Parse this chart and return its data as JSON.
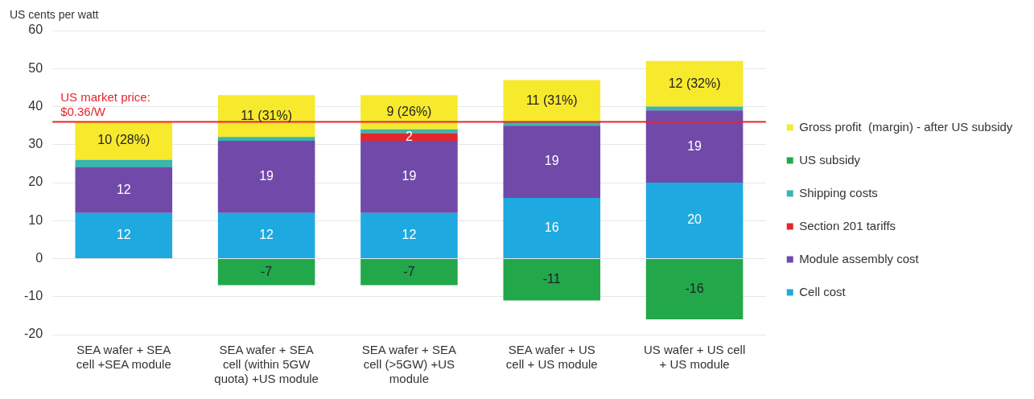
{
  "chart_data": {
    "type": "bar",
    "stacked": true,
    "ylabel": "US cents per watt",
    "categories": [
      "SEA wafer + SEA cell +SEA module",
      "SEA wafer + SEA cell (within 5GW quota) +US module",
      "SEA wafer + SEA cell (>5GW) +US module",
      "SEA wafer + US cell + US module",
      "US wafer + US cell + US module"
    ],
    "series": [
      {
        "name": "Cell cost",
        "color": "#1ea9e1",
        "values": [
          12,
          12,
          12,
          16,
          20
        ],
        "value_labels": [
          "12",
          "12",
          "12",
          "16",
          "20"
        ]
      },
      {
        "name": "Module assembly cost",
        "color": "#7149a9",
        "values": [
          12,
          19,
          19,
          19,
          19
        ],
        "value_labels": [
          "12",
          "19",
          "19",
          "19",
          "19"
        ]
      },
      {
        "name": "Section 201 tariffs",
        "color": "#e3262b",
        "values": [
          null,
          null,
          2,
          null,
          null
        ],
        "value_labels": [
          null,
          null,
          "2",
          null,
          null
        ]
      },
      {
        "name": "Shipping costs",
        "color": "#3bb5ae",
        "values": [
          2,
          1,
          1,
          1,
          1
        ]
      },
      {
        "name": "US subsidy",
        "color": "#22a84b",
        "values": [
          null,
          -7,
          -7,
          -11,
          -16
        ],
        "value_labels": [
          null,
          "-7",
          "-7",
          "-11",
          "-16"
        ]
      },
      {
        "name": "Gross profit  (margin) - after US subsidy",
        "color": "#f7e92c",
        "values": [
          10,
          11,
          9,
          11,
          12
        ],
        "value_labels": [
          "10 (28%)",
          "11 (31%)",
          "9 (26%)",
          "11 (31%)",
          "12 (32%)"
        ]
      }
    ],
    "ylim": [
      -20,
      60
    ],
    "yticks": [
      -20,
      -10,
      0,
      10,
      20,
      30,
      40,
      50,
      60
    ],
    "grid": "y",
    "legend": "right",
    "ref_lines": [
      {
        "axis": "y",
        "value": 36,
        "color": "#e3262b"
      }
    ],
    "annotations": [
      "US market price: $0.36/W"
    ]
  }
}
